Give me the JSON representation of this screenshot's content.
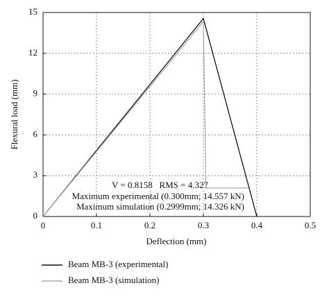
{
  "chart_data": {
    "type": "line",
    "xlabel": "Deflection (mm)",
    "ylabel": "Flexural load (mm)",
    "xlim": [
      0,
      0.5
    ],
    "xticks": [
      0,
      0.1,
      0.2,
      0.3,
      0.4,
      0.5
    ],
    "ylim": [
      0,
      15
    ],
    "yticks": [
      0,
      3,
      6,
      9,
      12,
      15
    ],
    "grid": true,
    "series": [
      {
        "name": "Beam MB-3 (experimental)",
        "color": "#111111",
        "x": [
          0,
          0.3,
          0.4
        ],
        "values": [
          0,
          14.557,
          0
        ]
      },
      {
        "name": "Beam MB-3 (simulation)",
        "color": "#aaaaaa",
        "x": [
          0,
          0.2999,
          0.305,
          0.385
        ],
        "values": [
          0,
          14.326,
          2.1,
          2.1
        ]
      }
    ],
    "annotations": [
      "V = 0.8158   RMS = 4.327",
      "Maximum experimental (0.300mm; 14.557 kN)",
      "Maximum simulation (0.2999mm; 14.326 kN)"
    ]
  }
}
